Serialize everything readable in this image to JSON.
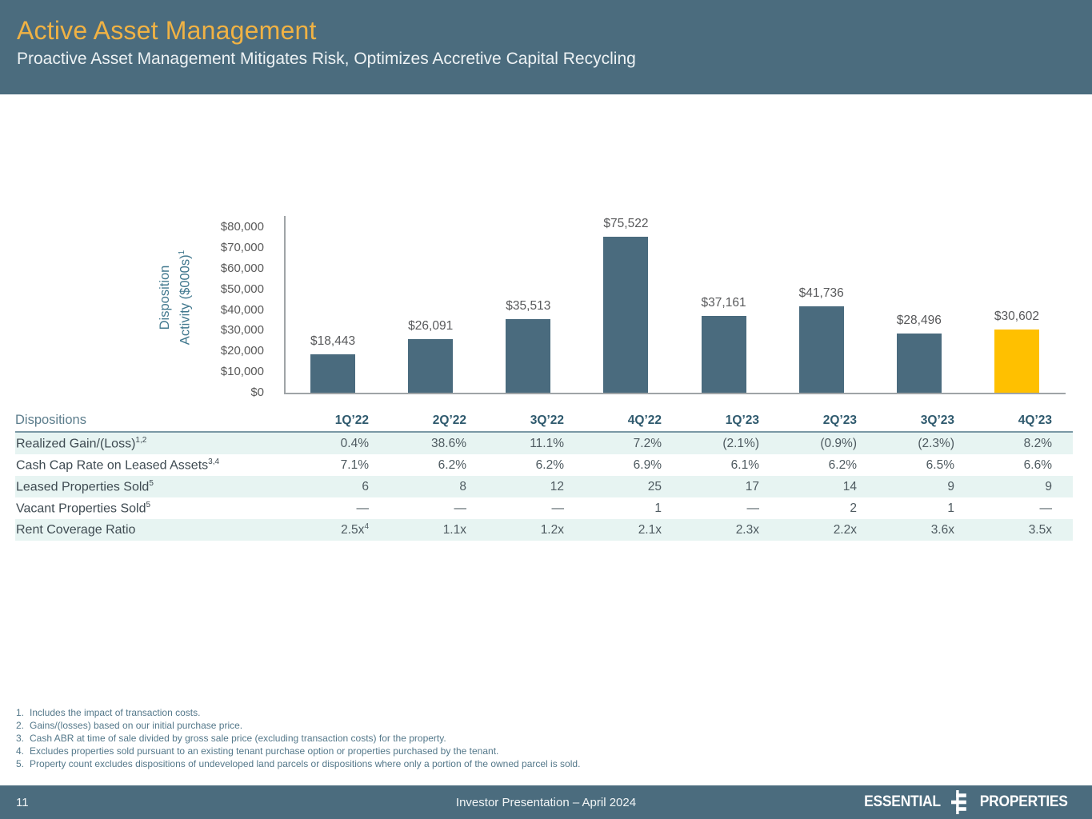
{
  "slide": {
    "title": "Active Asset Management",
    "subtitle": "Proactive Asset Management Mitigates Risk, Optimizes Accretive Capital Recycling"
  },
  "colors": {
    "band_background": "#4B6C7E",
    "title_gold": "#F0B244",
    "bar_color": "#4A6B7E",
    "bar_highlight": "#FFC000",
    "table_row_band": "#E7F4F2",
    "column_header_text": "#2F5A6E",
    "axis_title_text": "#41788E",
    "footnote_text": "#54788A"
  },
  "chart_data": {
    "type": "bar",
    "title": "",
    "ylabel_lines": [
      "Disposition",
      "Activity ($000s)"
    ],
    "ylabel_sup": "1",
    "categories": [
      "1Q’22",
      "2Q’22",
      "3Q’22",
      "4Q’22",
      "1Q’23",
      "2Q’23",
      "3Q’23",
      "4Q’23"
    ],
    "values": [
      18443,
      26091,
      35513,
      75522,
      37161,
      41736,
      28496,
      30602
    ],
    "labels": [
      "$18,443",
      "$26,091",
      "$35,513",
      "$75,522",
      "$37,161",
      "$41,736",
      "$28,496",
      "$30,602"
    ],
    "ylim": [
      0,
      80000
    ],
    "y_ticks": [
      "$80,000",
      "$70,000",
      "$60,000",
      "$50,000",
      "$40,000",
      "$30,000",
      "$20,000",
      "$10,000",
      "$0"
    ],
    "grid": false,
    "legend": "none",
    "highlight_index": 7
  },
  "table": {
    "corner_label": "Dispositions",
    "columns": [
      "1Q’22",
      "2Q’22",
      "3Q’22",
      "4Q’22",
      "1Q’23",
      "2Q’23",
      "3Q’23",
      "4Q’23"
    ],
    "rows": [
      {
        "label": "Realized Gain/(Loss)",
        "sup": "1,2",
        "values": [
          "0.4%",
          "38.6%",
          "11.1%",
          "7.2%",
          "(2.1%)",
          "(0.9%)",
          "(2.3%)",
          "8.2%"
        ]
      },
      {
        "label": "Cash Cap Rate on Leased Assets",
        "sup": "3,4",
        "values": [
          "7.1%",
          "6.2%",
          "6.2%",
          "6.9%",
          "6.1%",
          "6.2%",
          "6.5%",
          "6.6%"
        ]
      },
      {
        "label": "Leased Properties Sold",
        "sup": "5",
        "values": [
          "6",
          "8",
          "12",
          "25",
          "17",
          "14",
          "9",
          "9"
        ]
      },
      {
        "label": "Vacant Properties Sold",
        "sup": "5",
        "values": [
          "—",
          "—",
          "—",
          "1",
          "—",
          "2",
          "1",
          "—"
        ]
      },
      {
        "label": "Rent Coverage Ratio",
        "sup": "",
        "values": [
          {
            "text": "2.5x",
            "sup": "4"
          },
          "1.1x",
          "1.2x",
          "2.1x",
          "2.3x",
          "2.2x",
          "3.6x",
          "3.5x"
        ]
      }
    ]
  },
  "footnotes": [
    {
      "num": "1.",
      "text": "Includes the impact of transaction costs."
    },
    {
      "num": "2.",
      "text": "Gains/(losses) based on our initial purchase price."
    },
    {
      "num": "3.",
      "text": "Cash ABR at time of sale divided by gross sale price (excluding transaction costs) for the property."
    },
    {
      "num": "4.",
      "text": "Excludes properties sold pursuant to an existing tenant purchase option or properties purchased by the tenant."
    },
    {
      "num": "5.",
      "text": "Property count excludes dispositions of undeveloped land parcels or dispositions where only a portion of the owned parcel is sold."
    }
  ],
  "footer": {
    "page_number": "11",
    "center_text": "Investor Presentation – April 2024",
    "logo_word_left": "ESSENTIAL",
    "logo_word_right": "PROPERTIES"
  }
}
